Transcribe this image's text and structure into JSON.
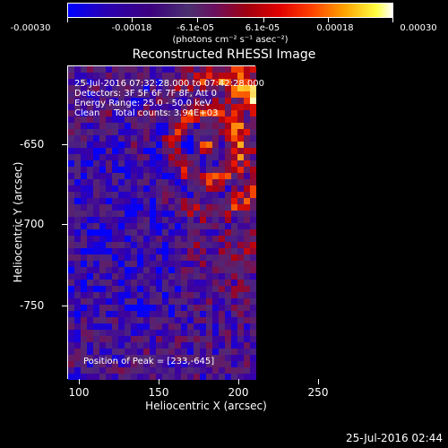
{
  "colorbar": {
    "ticks": [
      "-0.00030",
      "-0.00018",
      "-6.1e-05",
      "6.1e-05",
      "0.00018",
      "0.00030"
    ],
    "units": "(photons cm⁻² s⁻¹ asec⁻²)"
  },
  "title": "Reconstructed RHESSI Image",
  "info": {
    "time": "25-Jul-2016 07:32:28.000 to 07:42:28.000",
    "detectors": "Detectors: 3F 5F 6F 7F 8F, Att 0",
    "energy": "Energy Range: 25.0 - 50.0 keV",
    "clean": "Clean     Total counts: 3.94E+03"
  },
  "peak": "Position of Peak = [233,-645]",
  "axes": {
    "x_ticks": [
      "100",
      "150",
      "200",
      "250"
    ],
    "y_ticks": [
      "-650",
      "-700",
      "-750"
    ],
    "xlabel": "Heliocentric X (arcsec)",
    "ylabel": "Heliocentric Y (arcsec)"
  },
  "datestamp": "25-Jul-2016 02:44"
}
